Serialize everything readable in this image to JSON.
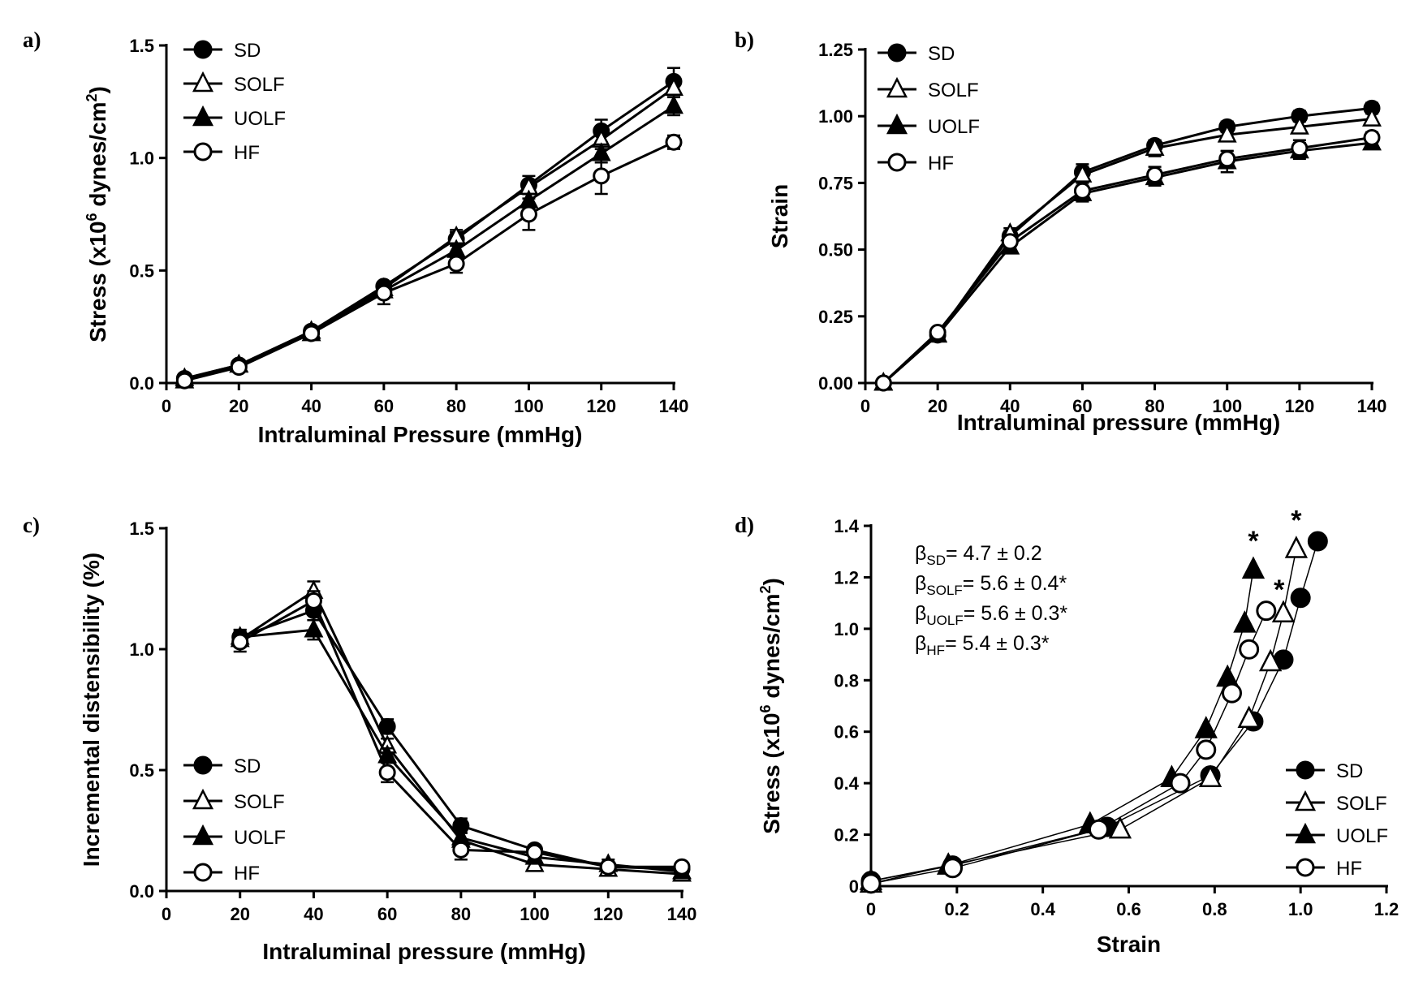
{
  "chart_data": [
    {
      "id": "a",
      "panel_label": "a)",
      "type": "line",
      "xlabel": "Intraluminal Pressure (mmHg)",
      "ylabel": {
        "pre": "Stress (x10",
        "sup1": "6",
        "mid": " dynes/cm",
        "sup2": "2",
        "post": ")"
      },
      "xlim": [
        0,
        140
      ],
      "ylim": [
        0,
        1.5
      ],
      "xticks": [
        "0",
        "20",
        "40",
        "60",
        "80",
        "100",
        "120",
        "140"
      ],
      "yticks": [
        "0.0",
        "0.5",
        "1.0",
        "1.5"
      ],
      "xtick_values": [
        0,
        20,
        40,
        60,
        80,
        100,
        120,
        140
      ],
      "ytick_values": [
        0,
        0.5,
        1.0,
        1.5
      ],
      "legend_position": "top-left",
      "x": [
        5,
        20,
        40,
        60,
        80,
        100,
        120,
        140
      ],
      "series": [
        {
          "name": "SD",
          "marker": "filled-circle",
          "values": [
            0.02,
            0.08,
            0.23,
            0.43,
            0.64,
            0.88,
            1.12,
            1.34
          ],
          "err": [
            0.01,
            0.01,
            0.02,
            0.02,
            0.03,
            0.04,
            0.05,
            0.06
          ]
        },
        {
          "name": "SOLF",
          "marker": "open-triangle",
          "values": [
            0.01,
            0.08,
            0.22,
            0.42,
            0.65,
            0.87,
            1.08,
            1.31
          ],
          "err": [
            0.01,
            0.01,
            0.02,
            0.02,
            0.03,
            0.03,
            0.04,
            0.04
          ]
        },
        {
          "name": "UOLF",
          "marker": "filled-triangle",
          "values": [
            0.02,
            0.08,
            0.23,
            0.41,
            0.59,
            0.81,
            1.02,
            1.23
          ],
          "err": [
            0.01,
            0.01,
            0.02,
            0.02,
            0.03,
            0.03,
            0.04,
            0.04
          ]
        },
        {
          "name": "HF",
          "marker": "open-circle",
          "values": [
            0.01,
            0.07,
            0.22,
            0.4,
            0.53,
            0.75,
            0.92,
            1.07
          ],
          "err": [
            0.01,
            0.01,
            0.02,
            0.05,
            0.04,
            0.07,
            0.08,
            0.03
          ]
        }
      ]
    },
    {
      "id": "b",
      "panel_label": "b)",
      "type": "line",
      "xlabel": "Intraluminal pressure (mmHg)",
      "ylabel": {
        "pre": "Strain",
        "sup1": "",
        "mid": "",
        "sup2": "",
        "post": ""
      },
      "xlim": [
        0,
        140
      ],
      "ylim": [
        0,
        1.25
      ],
      "xticks": [
        "0",
        "20",
        "40",
        "60",
        "80",
        "100",
        "120",
        "140"
      ],
      "yticks": [
        "0.00",
        "0.25",
        "0.50",
        "0.75",
        "1.00",
        "1.25"
      ],
      "xtick_values": [
        0,
        20,
        40,
        60,
        80,
        100,
        120,
        140
      ],
      "ytick_values": [
        0,
        0.25,
        0.5,
        0.75,
        1.0,
        1.25
      ],
      "legend_position": "top-left",
      "x": [
        5,
        20,
        40,
        60,
        80,
        100,
        120,
        140
      ],
      "series": [
        {
          "name": "SD",
          "marker": "filled-circle",
          "values": [
            0.0,
            0.18,
            0.55,
            0.79,
            0.89,
            0.96,
            1.0,
            1.03
          ],
          "err": [
            0.0,
            0.01,
            0.02,
            0.03,
            0.02,
            0.02,
            0.02,
            0.02
          ]
        },
        {
          "name": "SOLF",
          "marker": "open-triangle",
          "values": [
            0.0,
            0.18,
            0.56,
            0.78,
            0.88,
            0.93,
            0.96,
            0.99
          ],
          "err": [
            0.0,
            0.01,
            0.02,
            0.03,
            0.03,
            0.02,
            0.02,
            0.02
          ]
        },
        {
          "name": "UOLF",
          "marker": "filled-triangle",
          "values": [
            0.0,
            0.18,
            0.51,
            0.71,
            0.77,
            0.83,
            0.87,
            0.9
          ],
          "err": [
            0.0,
            0.01,
            0.02,
            0.03,
            0.03,
            0.04,
            0.03,
            0.02
          ]
        },
        {
          "name": "HF",
          "marker": "open-circle",
          "values": [
            0.0,
            0.19,
            0.53,
            0.72,
            0.78,
            0.84,
            0.88,
            0.92
          ],
          "err": [
            0.0,
            0.01,
            0.02,
            0.03,
            0.03,
            0.03,
            0.03,
            0.02
          ]
        }
      ]
    },
    {
      "id": "c",
      "panel_label": "c)",
      "type": "line",
      "xlabel": "Intraluminal pressure (mmHg)",
      "ylabel": {
        "pre": "Incremental distensibility (%)",
        "sup1": "",
        "mid": "",
        "sup2": "",
        "post": ""
      },
      "xlim": [
        0,
        140
      ],
      "ylim": [
        0,
        1.5
      ],
      "xticks": [
        "0",
        "20",
        "40",
        "60",
        "80",
        "100",
        "120",
        "140"
      ],
      "yticks": [
        "0.0",
        "0.5",
        "1.0",
        "1.5"
      ],
      "xtick_values": [
        0,
        20,
        40,
        60,
        80,
        100,
        120,
        140
      ],
      "ytick_values": [
        0,
        0.5,
        1.0,
        1.5
      ],
      "legend_position": "bottom-left",
      "x": [
        20,
        40,
        60,
        80,
        100,
        120,
        140
      ],
      "series": [
        {
          "name": "SD",
          "marker": "filled-circle",
          "values": [
            1.05,
            1.16,
            0.68,
            0.27,
            0.17,
            0.1,
            0.09
          ],
          "err": [
            0.03,
            0.04,
            0.03,
            0.03,
            0.02,
            0.02,
            0.01
          ]
        },
        {
          "name": "SOLF",
          "marker": "open-triangle",
          "values": [
            1.04,
            1.24,
            0.6,
            0.21,
            0.11,
            0.09,
            0.07
          ],
          "err": [
            0.03,
            0.04,
            0.03,
            0.03,
            0.02,
            0.02,
            0.01
          ]
        },
        {
          "name": "UOLF",
          "marker": "filled-triangle",
          "values": [
            1.05,
            1.08,
            0.56,
            0.22,
            0.14,
            0.11,
            0.08
          ],
          "err": [
            0.03,
            0.04,
            0.03,
            0.03,
            0.02,
            0.02,
            0.01
          ]
        },
        {
          "name": "HF",
          "marker": "open-circle",
          "values": [
            1.03,
            1.2,
            0.49,
            0.17,
            0.16,
            0.1,
            0.1
          ],
          "err": [
            0.04,
            0.04,
            0.04,
            0.04,
            0.02,
            0.02,
            0.01
          ]
        }
      ]
    },
    {
      "id": "d",
      "panel_label": "d)",
      "type": "line",
      "xlabel": "Strain",
      "ylabel": {
        "pre": "Stress (x10",
        "sup1": "6",
        "mid": " dynes/cm",
        "sup2": "2",
        "post": ")"
      },
      "xlim": [
        0,
        1.2
      ],
      "ylim": [
        0,
        1.4
      ],
      "xticks": [
        "0",
        "0.2",
        "0.4",
        "0.6",
        "0.8",
        "1.0",
        "1.2"
      ],
      "yticks": [
        "0",
        "0.2",
        "0.4",
        "0.6",
        "0.8",
        "1.0",
        "1.2",
        "1.4"
      ],
      "xtick_values": [
        0,
        0.2,
        0.4,
        0.6,
        0.8,
        1.0,
        1.2
      ],
      "ytick_values": [
        0,
        0.2,
        0.4,
        0.6,
        0.8,
        1.0,
        1.2,
        1.4
      ],
      "legend_position": "bottom-right",
      "series": [
        {
          "name": "SD",
          "marker": "filled-circle",
          "x": [
            0.0,
            0.19,
            0.55,
            0.79,
            0.89,
            0.96,
            1.0,
            1.04
          ],
          "values": [
            0.02,
            0.08,
            0.23,
            0.43,
            0.64,
            0.88,
            1.12,
            1.34
          ]
        },
        {
          "name": "SOLF",
          "marker": "open-triangle",
          "x": [
            0.0,
            0.18,
            0.58,
            0.79,
            0.88,
            0.93,
            0.96,
            0.99
          ],
          "values": [
            0.01,
            0.08,
            0.22,
            0.42,
            0.65,
            0.87,
            1.06,
            1.31
          ]
        },
        {
          "name": "UOLF",
          "marker": "filled-triangle",
          "x": [
            0.0,
            0.18,
            0.51,
            0.7,
            0.78,
            0.83,
            0.87,
            0.89
          ],
          "values": [
            0.02,
            0.08,
            0.24,
            0.42,
            0.61,
            0.81,
            1.02,
            1.23
          ]
        },
        {
          "name": "HF",
          "marker": "open-circle",
          "x": [
            0.0,
            0.19,
            0.53,
            0.72,
            0.78,
            0.84,
            0.88,
            0.92
          ],
          "values": [
            0.01,
            0.07,
            0.22,
            0.4,
            0.53,
            0.75,
            0.92,
            1.07
          ]
        }
      ],
      "significance_marks": [
        {
          "text": "*",
          "x": 0.89,
          "y": 1.35
        },
        {
          "text": "*",
          "x": 0.99,
          "y": 1.43
        },
        {
          "text": "*",
          "x": 0.95,
          "y": 1.16
        }
      ],
      "annotations": [
        {
          "sym": "β",
          "sub": "SD",
          "text": "= 4.7 ± 0.2"
        },
        {
          "sym": "β",
          "sub": "SOLF",
          "text": "= 5.6 ± 0.4*"
        },
        {
          "sym": "β",
          "sub": "UOLF",
          "text": "= 5.6 ± 0.3*"
        },
        {
          "sym": "β",
          "sub": "HF",
          "text": "= 5.4 ± 0.3*"
        }
      ]
    }
  ]
}
